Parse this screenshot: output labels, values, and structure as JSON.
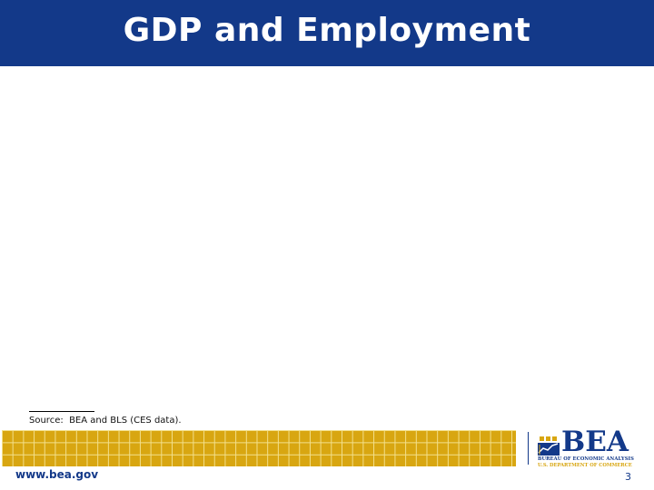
{
  "slide": {
    "title": "GDP and Employment",
    "source_note": "Source:  BEA and BLS (CES data).",
    "page_number": "3"
  },
  "footer": {
    "url": "www.bea.gov",
    "logo": {
      "wordmark": "BEA",
      "subtitle": "BUREAU OF ECONOMIC ANALYSIS",
      "department": "U.S. DEPARTMENT OF COMMERCE"
    }
  },
  "colors": {
    "header_background": "#133989",
    "title_text": "#ffffff",
    "grid_band": "#d8a611",
    "grid_lines": "#f3e08c",
    "brand_blue": "#133989"
  }
}
